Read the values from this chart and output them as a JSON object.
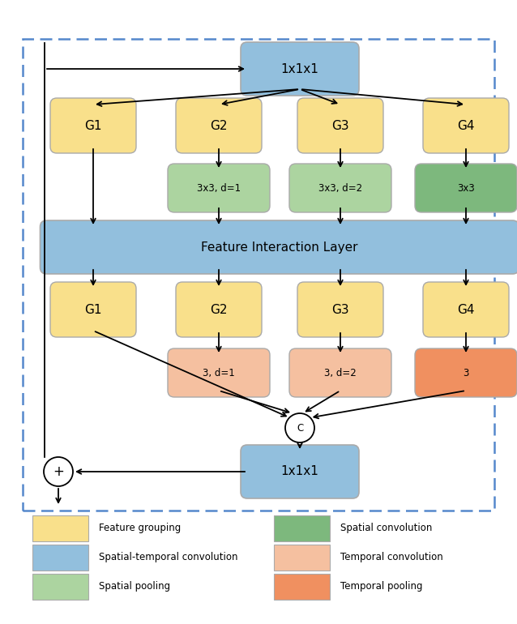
{
  "fig_width": 6.38,
  "fig_height": 7.7,
  "dpi": 100,
  "colors": {
    "yellow": "#f9e08b",
    "blue_box": "#92bfdd",
    "blue_wide": "#92bfdd",
    "green_dark": "#7db87d",
    "green_light": "#acd4a0",
    "orange_light": "#f5c0a0",
    "orange_dark": "#f09060",
    "border": "#5588cc",
    "white": "#ffffff"
  },
  "legend": [
    {
      "label": "Feature grouping",
      "color": "#f9e08b",
      "row": 0,
      "col": 0
    },
    {
      "label": "Spatial convolution",
      "color": "#7db87d",
      "row": 0,
      "col": 1
    },
    {
      "label": "Spatial-temporal convolution",
      "color": "#92bfdd",
      "row": 1,
      "col": 0
    },
    {
      "label": "Temporal convolution",
      "color": "#f5c0a0",
      "row": 1,
      "col": 1
    },
    {
      "label": "Spatial pooling",
      "color": "#acd4a0",
      "row": 2,
      "col": 0
    },
    {
      "label": "Temporal pooling",
      "color": "#f09060",
      "row": 2,
      "col": 1
    }
  ]
}
